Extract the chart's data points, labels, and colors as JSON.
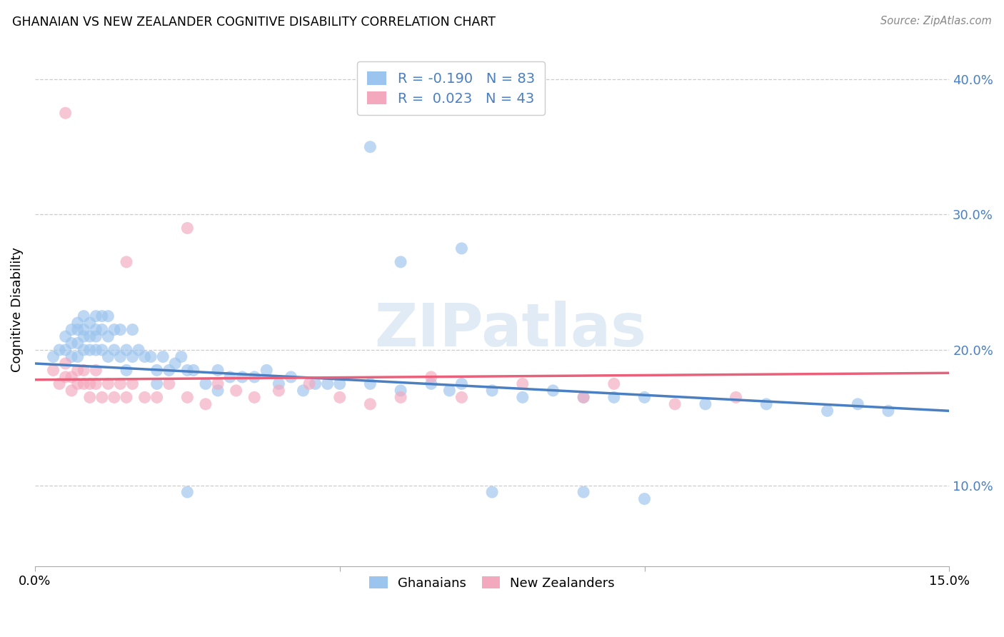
{
  "title": "GHANAIAN VS NEW ZEALANDER COGNITIVE DISABILITY CORRELATION CHART",
  "source": "Source: ZipAtlas.com",
  "ylabel": "Cognitive Disability",
  "xlim": [
    0.0,
    0.15
  ],
  "ylim": [
    0.04,
    0.42
  ],
  "yticks": [
    0.1,
    0.2,
    0.3,
    0.4
  ],
  "ytick_labels": [
    "10.0%",
    "20.0%",
    "30.0%",
    "40.0%"
  ],
  "xticks": [
    0.0,
    0.05,
    0.1,
    0.15
  ],
  "xtick_labels": [
    "0.0%",
    "",
    "",
    "15.0%"
  ],
  "blue_color": "#9BC4EE",
  "pink_color": "#F4A8BE",
  "blue_line_color": "#4A7FC1",
  "pink_line_color": "#E8607A",
  "watermark_text": "ZIPatlas",
  "legend_label_ghanaians": "Ghanaians",
  "legend_label_nzers": "New Zealanders",
  "blue_R": -0.19,
  "blue_N": 83,
  "pink_R": 0.023,
  "pink_N": 43,
  "blue_line_x0": 0.0,
  "blue_line_y0": 0.19,
  "blue_line_x1": 0.15,
  "blue_line_y1": 0.155,
  "pink_line_x0": 0.0,
  "pink_line_y0": 0.178,
  "pink_line_x1": 0.15,
  "pink_line_y1": 0.183,
  "blue_scatter_x": [
    0.003,
    0.004,
    0.005,
    0.005,
    0.006,
    0.006,
    0.006,
    0.007,
    0.007,
    0.007,
    0.007,
    0.008,
    0.008,
    0.008,
    0.008,
    0.009,
    0.009,
    0.009,
    0.01,
    0.01,
    0.01,
    0.01,
    0.011,
    0.011,
    0.011,
    0.012,
    0.012,
    0.012,
    0.013,
    0.013,
    0.014,
    0.014,
    0.015,
    0.015,
    0.016,
    0.016,
    0.017,
    0.018,
    0.019,
    0.02,
    0.021,
    0.022,
    0.023,
    0.024,
    0.025,
    0.026,
    0.028,
    0.03,
    0.032,
    0.034,
    0.036,
    0.038,
    0.04,
    0.042,
    0.044,
    0.046,
    0.048,
    0.05,
    0.055,
    0.06,
    0.065,
    0.068,
    0.07,
    0.075,
    0.08,
    0.085,
    0.09,
    0.095,
    0.1,
    0.11,
    0.12,
    0.13,
    0.135,
    0.14,
    0.06,
    0.07,
    0.075,
    0.09,
    0.1,
    0.055,
    0.02,
    0.025,
    0.03
  ],
  "blue_scatter_y": [
    0.195,
    0.2,
    0.2,
    0.21,
    0.195,
    0.205,
    0.215,
    0.195,
    0.205,
    0.215,
    0.22,
    0.2,
    0.21,
    0.215,
    0.225,
    0.2,
    0.21,
    0.22,
    0.2,
    0.21,
    0.215,
    0.225,
    0.2,
    0.215,
    0.225,
    0.195,
    0.21,
    0.225,
    0.2,
    0.215,
    0.195,
    0.215,
    0.185,
    0.2,
    0.195,
    0.215,
    0.2,
    0.195,
    0.195,
    0.185,
    0.195,
    0.185,
    0.19,
    0.195,
    0.185,
    0.185,
    0.175,
    0.185,
    0.18,
    0.18,
    0.18,
    0.185,
    0.175,
    0.18,
    0.17,
    0.175,
    0.175,
    0.175,
    0.175,
    0.17,
    0.175,
    0.17,
    0.175,
    0.17,
    0.165,
    0.17,
    0.165,
    0.165,
    0.165,
    0.16,
    0.16,
    0.155,
    0.16,
    0.155,
    0.265,
    0.275,
    0.095,
    0.095,
    0.09,
    0.35,
    0.175,
    0.095,
    0.17
  ],
  "pink_scatter_x": [
    0.003,
    0.004,
    0.005,
    0.005,
    0.006,
    0.006,
    0.007,
    0.007,
    0.008,
    0.008,
    0.009,
    0.009,
    0.01,
    0.01,
    0.011,
    0.012,
    0.013,
    0.014,
    0.015,
    0.016,
    0.018,
    0.02,
    0.022,
    0.025,
    0.028,
    0.03,
    0.033,
    0.036,
    0.04,
    0.045,
    0.05,
    0.055,
    0.06,
    0.065,
    0.07,
    0.08,
    0.09,
    0.095,
    0.105,
    0.115,
    0.015,
    0.025,
    0.005
  ],
  "pink_scatter_y": [
    0.185,
    0.175,
    0.18,
    0.19,
    0.17,
    0.18,
    0.175,
    0.185,
    0.175,
    0.185,
    0.175,
    0.165,
    0.175,
    0.185,
    0.165,
    0.175,
    0.165,
    0.175,
    0.165,
    0.175,
    0.165,
    0.165,
    0.175,
    0.165,
    0.16,
    0.175,
    0.17,
    0.165,
    0.17,
    0.175,
    0.165,
    0.16,
    0.165,
    0.18,
    0.165,
    0.175,
    0.165,
    0.175,
    0.16,
    0.165,
    0.265,
    0.29,
    0.375
  ]
}
